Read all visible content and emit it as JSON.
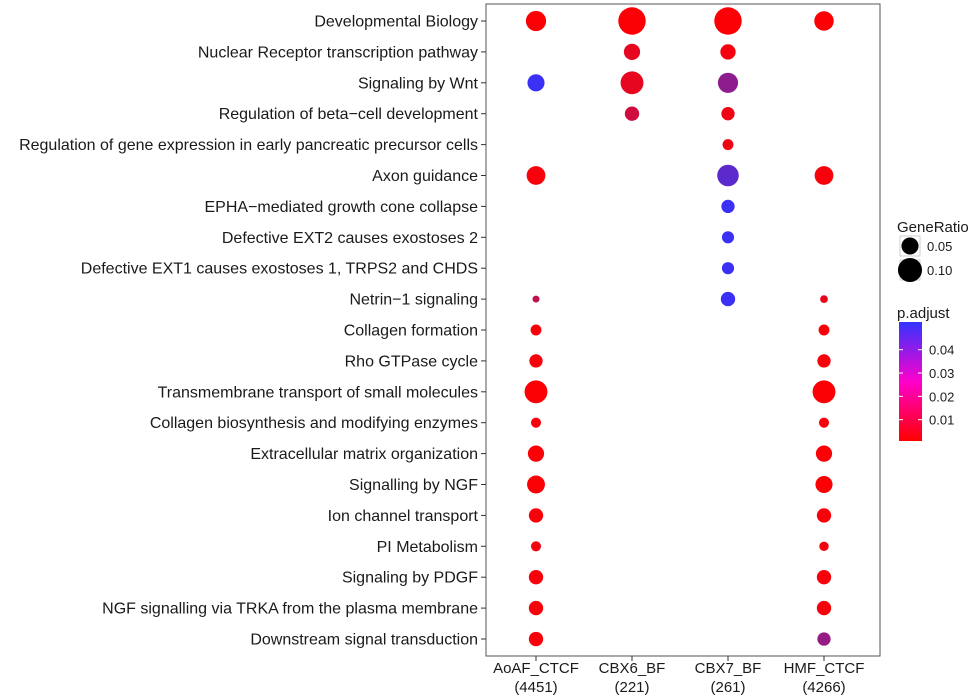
{
  "chart_data": {
    "type": "scatter",
    "subtype": "dotplot",
    "title": "",
    "xlabel": "",
    "ylabel": "",
    "x_categories": [
      {
        "line1": "AoAF_CTCF",
        "line2": "(4451)"
      },
      {
        "line1": "CBX6_BF",
        "line2": "(221)"
      },
      {
        "line1": "CBX7_BF",
        "line2": "(261)"
      },
      {
        "line1": "HMF_CTCF",
        "line2": "(4266)"
      }
    ],
    "y_categories": [
      "Developmental Biology",
      "Nuclear Receptor transcription pathway",
      "Signaling by Wnt",
      "Regulation of beta−cell development",
      "Regulation of gene expression in early pancreatic precursor cells",
      "Axon guidance",
      "EPHA−mediated growth cone collapse",
      "Defective EXT2 causes exostoses 2",
      "Defective EXT1 causes exostoses 1, TRPS2 and CHDS",
      "Netrin−1 signaling",
      "Collagen formation",
      "Rho GTPase cycle",
      "Transmembrane transport of small molecules",
      "Collagen biosynthesis and modifying enzymes",
      "Extracellular matrix organization",
      "Signalling by NGF",
      "Ion channel transport",
      "PI Metabolism",
      "Signaling by PDGF",
      "NGF signalling via TRKA from the plasma membrane",
      "Downstream signal transduction"
    ],
    "points": [
      {
        "x": "AoAF_CTCF",
        "y": "Developmental Biology",
        "gene_ratio": 0.07,
        "p_adjust": 0.001
      },
      {
        "x": "CBX6_BF",
        "y": "Developmental Biology",
        "gene_ratio": 0.13,
        "p_adjust": 0.001
      },
      {
        "x": "CBX7_BF",
        "y": "Developmental Biology",
        "gene_ratio": 0.13,
        "p_adjust": 0.001
      },
      {
        "x": "HMF_CTCF",
        "y": "Developmental Biology",
        "gene_ratio": 0.065,
        "p_adjust": 0.001
      },
      {
        "x": "CBX6_BF",
        "y": "Nuclear Receptor transcription pathway",
        "gene_ratio": 0.045,
        "p_adjust": 0.006
      },
      {
        "x": "CBX7_BF",
        "y": "Nuclear Receptor transcription pathway",
        "gene_ratio": 0.04,
        "p_adjust": 0.003
      },
      {
        "x": "AoAF_CTCF",
        "y": "Signaling by Wnt",
        "gene_ratio": 0.05,
        "p_adjust": 0.048
      },
      {
        "x": "CBX6_BF",
        "y": "Signaling by Wnt",
        "gene_ratio": 0.09,
        "p_adjust": 0.006
      },
      {
        "x": "CBX7_BF",
        "y": "Signaling by Wnt",
        "gene_ratio": 0.07,
        "p_adjust": 0.028
      },
      {
        "x": "CBX6_BF",
        "y": "Regulation of beta−cell development",
        "gene_ratio": 0.035,
        "p_adjust": 0.012
      },
      {
        "x": "CBX7_BF",
        "y": "Regulation of beta−cell development",
        "gene_ratio": 0.03,
        "p_adjust": 0.004
      },
      {
        "x": "CBX7_BF",
        "y": "Regulation of gene expression in early pancreatic precursor cells",
        "gene_ratio": 0.02,
        "p_adjust": 0.004
      },
      {
        "x": "AoAF_CTCF",
        "y": "Axon guidance",
        "gene_ratio": 0.06,
        "p_adjust": 0.002
      },
      {
        "x": "CBX7_BF",
        "y": "Axon guidance",
        "gene_ratio": 0.08,
        "p_adjust": 0.04
      },
      {
        "x": "HMF_CTCF",
        "y": "Axon guidance",
        "gene_ratio": 0.06,
        "p_adjust": 0.002
      },
      {
        "x": "CBX7_BF",
        "y": "EPHA−mediated growth cone collapse",
        "gene_ratio": 0.03,
        "p_adjust": 0.048
      },
      {
        "x": "CBX7_BF",
        "y": "Defective EXT2 causes exostoses 2",
        "gene_ratio": 0.025,
        "p_adjust": 0.048
      },
      {
        "x": "CBX7_BF",
        "y": "Defective EXT1 causes exostoses 1, TRPS2 and CHDS",
        "gene_ratio": 0.025,
        "p_adjust": 0.048
      },
      {
        "x": "AoAF_CTCF",
        "y": "Netrin−1 signaling",
        "gene_ratio": 0.008,
        "p_adjust": 0.015
      },
      {
        "x": "CBX7_BF",
        "y": "Netrin−1 signaling",
        "gene_ratio": 0.035,
        "p_adjust": 0.048
      },
      {
        "x": "HMF_CTCF",
        "y": "Netrin−1 signaling",
        "gene_ratio": 0.01,
        "p_adjust": 0.005
      },
      {
        "x": "AoAF_CTCF",
        "y": "Collagen formation",
        "gene_ratio": 0.02,
        "p_adjust": 0.002
      },
      {
        "x": "HMF_CTCF",
        "y": "Collagen formation",
        "gene_ratio": 0.02,
        "p_adjust": 0.002
      },
      {
        "x": "AoAF_CTCF",
        "y": "Rho GTPase cycle",
        "gene_ratio": 0.03,
        "p_adjust": 0.002
      },
      {
        "x": "HMF_CTCF",
        "y": "Rho GTPase cycle",
        "gene_ratio": 0.03,
        "p_adjust": 0.002
      },
      {
        "x": "AoAF_CTCF",
        "y": "Transmembrane transport of small molecules",
        "gene_ratio": 0.09,
        "p_adjust": 0.001
      },
      {
        "x": "HMF_CTCF",
        "y": "Transmembrane transport of small molecules",
        "gene_ratio": 0.09,
        "p_adjust": 0.001
      },
      {
        "x": "AoAF_CTCF",
        "y": "Collagen biosynthesis and modifying enzymes",
        "gene_ratio": 0.017,
        "p_adjust": 0.002
      },
      {
        "x": "HMF_CTCF",
        "y": "Collagen biosynthesis and modifying enzymes",
        "gene_ratio": 0.017,
        "p_adjust": 0.002
      },
      {
        "x": "AoAF_CTCF",
        "y": "Extracellular matrix organization",
        "gene_ratio": 0.045,
        "p_adjust": 0.001
      },
      {
        "x": "HMF_CTCF",
        "y": "Extracellular matrix organization",
        "gene_ratio": 0.045,
        "p_adjust": 0.001
      },
      {
        "x": "AoAF_CTCF",
        "y": "Signalling by NGF",
        "gene_ratio": 0.055,
        "p_adjust": 0.001
      },
      {
        "x": "HMF_CTCF",
        "y": "Signalling by NGF",
        "gene_ratio": 0.05,
        "p_adjust": 0.001
      },
      {
        "x": "AoAF_CTCF",
        "y": "Ion channel transport",
        "gene_ratio": 0.035,
        "p_adjust": 0.002
      },
      {
        "x": "HMF_CTCF",
        "y": "Ion channel transport",
        "gene_ratio": 0.035,
        "p_adjust": 0.002
      },
      {
        "x": "AoAF_CTCF",
        "y": "PI Metabolism",
        "gene_ratio": 0.017,
        "p_adjust": 0.003
      },
      {
        "x": "HMF_CTCF",
        "y": "PI Metabolism",
        "gene_ratio": 0.015,
        "p_adjust": 0.003
      },
      {
        "x": "AoAF_CTCF",
        "y": "Signaling by PDGF",
        "gene_ratio": 0.035,
        "p_adjust": 0.002
      },
      {
        "x": "HMF_CTCF",
        "y": "Signaling by PDGF",
        "gene_ratio": 0.035,
        "p_adjust": 0.002
      },
      {
        "x": "AoAF_CTCF",
        "y": "NGF signalling via TRKA from the plasma membrane",
        "gene_ratio": 0.035,
        "p_adjust": 0.002
      },
      {
        "x": "HMF_CTCF",
        "y": "NGF signalling via TRKA from the plasma membrane",
        "gene_ratio": 0.035,
        "p_adjust": 0.002
      },
      {
        "x": "AoAF_CTCF",
        "y": "Downstream signal transduction",
        "gene_ratio": 0.035,
        "p_adjust": 0.002
      },
      {
        "x": "HMF_CTCF",
        "y": "Downstream signal transduction",
        "gene_ratio": 0.03,
        "p_adjust": 0.026
      }
    ],
    "legend": {
      "size": {
        "title": "GeneRatio",
        "entries": [
          {
            "label": "0.05",
            "value": 0.05
          },
          {
            "label": "0.10",
            "value": 0.1
          }
        ]
      },
      "color": {
        "title": "p.adjust",
        "ticks": [
          {
            "label": "0.04",
            "value": 0.04
          },
          {
            "label": "0.03",
            "value": 0.03
          },
          {
            "label": "0.02",
            "value": 0.02
          },
          {
            "label": "0.01",
            "value": 0.01
          }
        ],
        "range": [
          0.0,
          0.05
        ],
        "low_color": "#ff0000",
        "high_color": "#3333ff"
      },
      "placement": "right"
    },
    "grid": false
  }
}
